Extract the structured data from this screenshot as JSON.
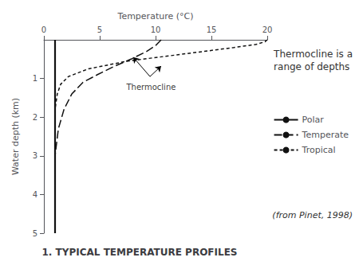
{
  "chart_data": {
    "type": "line",
    "title": "1. TYPICAL TEMPERATURE PROFILES",
    "xlabel": "Temperature (°C)",
    "ylabel": "Water depth (km)",
    "xlim": [
      0,
      20
    ],
    "ylim": [
      5,
      0
    ],
    "xticks": [
      0,
      5,
      10,
      15,
      20
    ],
    "yticks": [
      1,
      2,
      3,
      4,
      5
    ],
    "grid": false,
    "legend": "lower right",
    "series": [
      {
        "name": "Polar",
        "color": "#111111",
        "line_style": "solid",
        "x": [
          1.0,
          1.0,
          1.0,
          1.0,
          1.0,
          1.0,
          1.0,
          1.0,
          1.0,
          1.0
        ],
        "values": [
          0.0,
          0.3,
          0.6,
          1.0,
          1.5,
          2.0,
          2.5,
          3.0,
          4.0,
          5.0
        ]
      },
      {
        "name": "Temperate",
        "color": "#111111",
        "line_style": "long_dash",
        "x": [
          10.5,
          10.0,
          9.2,
          7.8,
          6.2,
          4.8,
          3.5,
          2.5,
          1.8,
          1.3,
          1.0,
          1.0,
          1.0
        ],
        "values": [
          0.0,
          0.15,
          0.3,
          0.5,
          0.7,
          0.9,
          1.1,
          1.4,
          1.8,
          2.3,
          3.0,
          4.0,
          5.0
        ]
      },
      {
        "name": "Tropical",
        "color": "#111111",
        "line_style": "short_dash",
        "x": [
          20.0,
          19.8,
          19.0,
          17.0,
          13.0,
          7.5,
          4.0,
          2.2,
          1.5,
          1.2,
          1.0,
          1.0,
          1.0,
          1.0
        ],
        "values": [
          0.0,
          0.05,
          0.12,
          0.2,
          0.35,
          0.55,
          0.75,
          0.95,
          1.15,
          1.4,
          1.8,
          2.5,
          3.5,
          5.0
        ]
      }
    ],
    "annotations": [
      {
        "text": "Thermocline",
        "x": 9.6,
        "y": 1.08,
        "arrows": [
          {
            "from": [
              9.5,
              0.95
            ],
            "to": [
              8.0,
              0.45
            ]
          },
          {
            "from": [
              9.5,
              0.95
            ],
            "to": [
              10.5,
              0.68
            ]
          }
        ]
      },
      {
        "text": "Thermocline is a\nrange of depths"
      },
      {
        "text": "(from Pinet, 1998)"
      }
    ]
  }
}
